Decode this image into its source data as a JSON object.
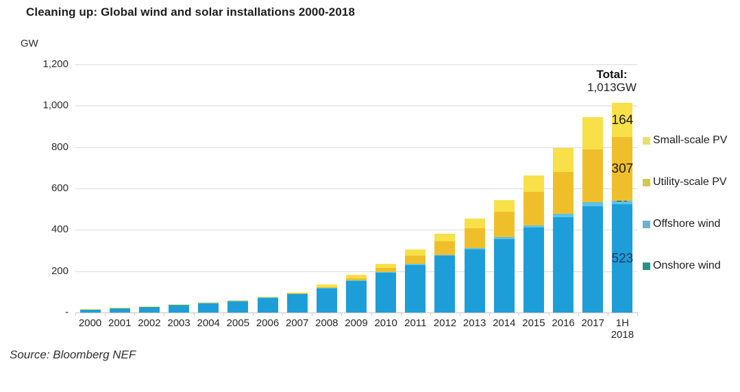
{
  "title": "Cleaning up: Global wind and solar installations 2000-2018",
  "y_axis": {
    "unit": "GW",
    "ticks": [
      "1,200",
      "1,000",
      "800",
      "600",
      "400",
      "200",
      "-"
    ]
  },
  "annotation": {
    "total_label": "Total:",
    "total_value": "1,013GW"
  },
  "source": "Source: Bloomberg NEF",
  "chart_data": {
    "type": "bar",
    "stacked": true,
    "title": "Cleaning up: Global wind and solar installations 2000-2018",
    "ylabel": "GW",
    "ylim": [
      0,
      1200
    ],
    "grid": true,
    "legend_position": "right",
    "categories": [
      "2000",
      "2001",
      "2002",
      "2003",
      "2004",
      "2005",
      "2006",
      "2007",
      "2008",
      "2009",
      "2010",
      "2011",
      "2012",
      "2013",
      "2014",
      "2015",
      "2016",
      "2017",
      "1H\n2018"
    ],
    "series": [
      {
        "name": "Onshore wind",
        "color": "#1E9ED9",
        "values": [
          17,
          23,
          30,
          38,
          46,
          57,
          72,
          91,
          117,
          155,
          192,
          230,
          275,
          305,
          355,
          410,
          462,
          515,
          523
        ],
        "last_label": "523",
        "label_color": "#1f3864",
        "label_style": "center"
      },
      {
        "name": "Offshore wind",
        "color": "#5CC2E7",
        "values": [
          0,
          0,
          0,
          0,
          1,
          1,
          1,
          1,
          1,
          2,
          3,
          4,
          5,
          7,
          9,
          12,
          14,
          19,
          19
        ],
        "last_label": "19",
        "label_color": "#1f3864",
        "label_style": "float"
      },
      {
        "name": "Utility-scale PV",
        "color": "#EFBF2B",
        "values": [
          0,
          0,
          0,
          0,
          0,
          0,
          0,
          1,
          5,
          10,
          20,
          40,
          65,
          95,
          125,
          160,
          205,
          255,
          307
        ],
        "last_label": "307",
        "label_color": "#1a1a1a",
        "label_style": "center"
      },
      {
        "name": "Small-scale PV",
        "color": "#F8E049",
        "values": [
          1,
          1,
          1,
          2,
          2,
          2,
          2,
          2,
          13,
          15,
          20,
          31,
          35,
          48,
          56,
          80,
          114,
          156,
          164
        ],
        "last_label": "164",
        "label_color": "#1a1a1a",
        "label_style": "center"
      }
    ],
    "totals": [
      18,
      24,
      31,
      40,
      49,
      60,
      75,
      95,
      136,
      182,
      235,
      305,
      380,
      455,
      545,
      662,
      795,
      945,
      1013
    ],
    "total_annotation": {
      "label": "Total:",
      "value": "1,013GW"
    }
  },
  "legend": {
    "items": [
      {
        "label": "Small-scale PV",
        "swatch_color": "#E7E06E"
      },
      {
        "label": "Utility-scale PV",
        "swatch_color": "#D5C74B"
      },
      {
        "label": "Offshore wind",
        "swatch_color": "#6FB0CF"
      },
      {
        "label": "Onshore wind",
        "swatch_color": "#27928A"
      }
    ]
  }
}
